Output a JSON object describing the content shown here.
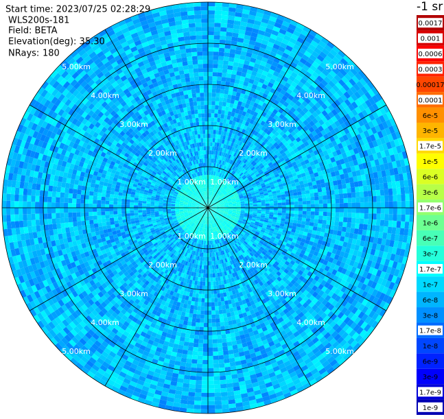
{
  "header": {
    "start_time": "Start time: 2023/07/25 02:28:29",
    "instrument": "WLS200s-181",
    "field": "Field: BETA",
    "elevation": "Elevation(deg): 35.30",
    "nrays_label": "NRays:",
    "nrays": 180
  },
  "range_labels": [
    "1.00km",
    "2.00km",
    "3.00km",
    "4.00km",
    "5.00km"
  ],
  "colorbar": {
    "unit": "-1 sr",
    "labels": [
      "0.0017",
      "0.001",
      "0.0006",
      "0.0003",
      "0.00017",
      "0.0001",
      "6e-5",
      "3e-5",
      "1.7e-5",
      "1e-5",
      "6e-6",
      "3e-6",
      "1.7e-6",
      "1e-6",
      "6e-7",
      "3e-7",
      "1.7e-7",
      "1e-7",
      "6e-8",
      "3e-8",
      "1.7e-8",
      "1e-8",
      "6e-9",
      "3e-9",
      "1.7e-9",
      "1e-9"
    ]
  }
}
